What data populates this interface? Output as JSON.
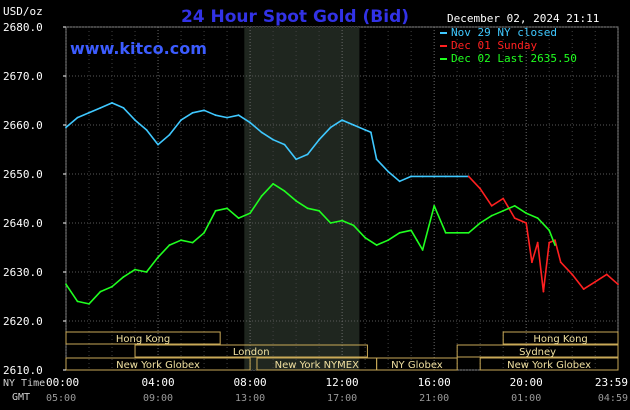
{
  "chart_data": {
    "type": "line",
    "title": "24 Hour Spot Gold (Bid)",
    "brand": "www.kitco.com",
    "unit_label": "USD/oz",
    "date_stamp": "December 02, 2024 21:11",
    "ylim": [
      2610,
      2680
    ],
    "y_ticks": [
      "2680.0",
      "2670.0",
      "2660.0",
      "2650.0",
      "2640.0",
      "2630.0",
      "2620.0",
      "2610.0"
    ],
    "grid": true,
    "x_ticks_ny": [
      "00:00",
      "04:00",
      "08:00",
      "12:00",
      "16:00",
      "20:00",
      "23:59"
    ],
    "x_ticks_gmt": [
      "05:00",
      "09:00",
      "13:00",
      "17:00",
      "21:00",
      "01:00",
      "04:59"
    ],
    "ny_time_label": "NY Time",
    "gmt_label": "GMT",
    "highlight_hours": [
      7.75,
      12.75
    ],
    "legend_position": "top-right",
    "series": [
      {
        "name": "Nov 29 NY closed",
        "color": "#3fc8ff",
        "x": [
          0,
          0.5,
          1,
          1.5,
          2,
          2.5,
          3,
          3.5,
          4,
          4.5,
          5,
          5.5,
          6,
          6.5,
          7,
          7.5,
          8,
          8.5,
          9,
          9.5,
          10,
          10.5,
          11,
          11.5,
          12,
          12.5,
          13,
          13.25,
          13.5,
          14,
          14.5,
          15,
          15.5,
          16,
          16.5,
          17,
          17.5
        ],
        "values": [
          2659.5,
          2661.5,
          2662.5,
          2663.5,
          2664.5,
          2663.5,
          2661.0,
          2659.0,
          2656.0,
          2658.0,
          2661.0,
          2662.5,
          2663.0,
          2662.0,
          2661.5,
          2662.0,
          2660.5,
          2658.5,
          2657.0,
          2656.0,
          2653.0,
          2654.0,
          2657.0,
          2659.5,
          2661.0,
          2660.0,
          2659.0,
          2658.5,
          2653.0,
          2650.5,
          2648.5,
          2649.5,
          2649.5,
          2649.5,
          2649.5,
          2649.5,
          2649.5
        ]
      },
      {
        "name": "Dec 01 Sunday",
        "color": "#ff2020",
        "x": [
          17.5,
          18,
          18.5,
          19,
          19.5,
          20,
          20.25,
          20.5,
          20.75,
          21,
          21.25,
          21.5,
          22,
          22.5,
          23,
          23.5,
          23.99
        ],
        "values": [
          2649.5,
          2647.0,
          2643.5,
          2645.0,
          2641.0,
          2640.0,
          2632.0,
          2636.0,
          2626.0,
          2636.0,
          2636.5,
          2632.0,
          2629.5,
          2626.5,
          2628.0,
          2629.5,
          2627.5
        ]
      },
      {
        "name": "Dec 02 Last 2635.50",
        "color": "#20ff20",
        "x": [
          0,
          0.5,
          1,
          1.5,
          2,
          2.5,
          3,
          3.5,
          4,
          4.5,
          5,
          5.5,
          6,
          6.5,
          7,
          7.5,
          8,
          8.5,
          9,
          9.5,
          10,
          10.5,
          11,
          11.5,
          12,
          12.5,
          13,
          13.5,
          14,
          14.5,
          15,
          15.25,
          15.5,
          16,
          16.5,
          17,
          17.5,
          18,
          18.5,
          19,
          19.5,
          20,
          20.5,
          21,
          21.25
        ],
        "values": [
          2627.5,
          2624.0,
          2623.5,
          2626.0,
          2627.0,
          2629.0,
          2630.5,
          2630.0,
          2633.0,
          2635.5,
          2636.5,
          2636.0,
          2638.0,
          2642.5,
          2643.0,
          2641.0,
          2642.0,
          2645.5,
          2648.0,
          2646.5,
          2644.5,
          2643.0,
          2642.5,
          2640.0,
          2640.5,
          2639.5,
          2637.0,
          2635.5,
          2636.5,
          2638.0,
          2638.5,
          2636.5,
          2634.5,
          2643.5,
          2638.0,
          2638.0,
          2638.0,
          2640.0,
          2641.5,
          2642.5,
          2643.5,
          2642.0,
          2641.0,
          2638.5,
          2635.5
        ]
      }
    ],
    "markets": [
      {
        "name": "Hong Kong",
        "row": 0,
        "start": 0,
        "end": 6.7
      },
      {
        "name": "London",
        "row": 1,
        "start": 3,
        "end": 13.1
      },
      {
        "name": "New York Globex",
        "row": 2,
        "start": 0,
        "end": 8
      },
      {
        "name": "New York NYMEX",
        "row": 2,
        "start": 8.3,
        "end": 13.5
      },
      {
        "name": "NY Globex",
        "row": 2,
        "start": 13.5,
        "end": 17
      },
      {
        "name": "Hong Kong",
        "row": 0,
        "start": 19,
        "end": 23.99
      },
      {
        "name": "Sydney",
        "row": 1,
        "start": 17,
        "end": 23.99
      },
      {
        "name": "New York Globex",
        "row": 2,
        "start": 18,
        "end": 23.99
      }
    ]
  }
}
